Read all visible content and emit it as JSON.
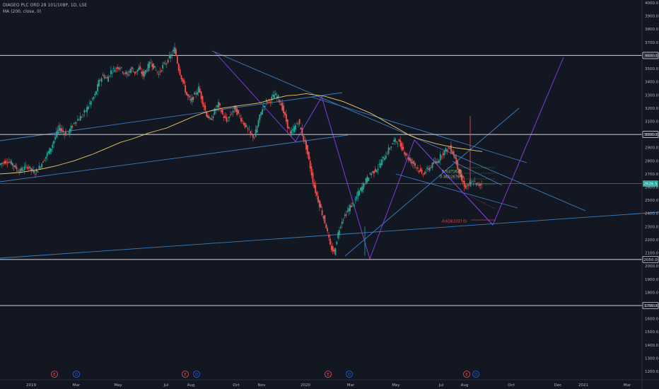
{
  "header": {
    "symbol_line": "DIAGEO PLC ORD 28 101/108P, 1D, LSE",
    "indicator_line": "MA (200, close, 0)"
  },
  "chart_data": {
    "type": "candlestick",
    "y_ticks": [
      1200,
      1300,
      1400,
      1500,
      1600,
      1700,
      1800,
      1900,
      2000,
      2100,
      2200,
      2300,
      2400,
      2500,
      2600,
      2700,
      2800,
      2900,
      3000,
      3100,
      3200,
      3300,
      3400,
      3500,
      3600,
      3700,
      3800,
      3900,
      4000
    ],
    "ylim": [
      1160,
      4015
    ],
    "x_labels": [
      "2019",
      "Mar",
      "May",
      "Jul",
      "Aug",
      "Oct",
      "Nov",
      "2020",
      "Mar",
      "May",
      "Jul",
      "Aug",
      "Oct",
      "Dec",
      "2021",
      "Mar"
    ],
    "horizontal_levels": [
      {
        "value": 3600,
        "label": "3600.0"
      },
      {
        "value": 3000,
        "label": "3000.0"
      },
      {
        "value": 2050,
        "label": "2050.0"
      },
      {
        "value": 1700,
        "label": "1700.0"
      }
    ],
    "last_price": {
      "value": 2626,
      "label": "2626.5"
    },
    "fib_labels": [
      {
        "text": "0.5(2716.0)",
        "value": 2716
      },
      {
        "text": "0.382(2676.0)",
        "value": 2676
      },
      {
        "text": "-0.618(2337.0)",
        "value": 2337
      }
    ],
    "event_markers": [
      {
        "type": "E",
        "after_label": 0
      },
      {
        "type": "D",
        "after_label": 0
      },
      {
        "type": "E",
        "after_label": 3
      },
      {
        "type": "D",
        "after_label": 3
      },
      {
        "type": "E",
        "after_label": 7
      },
      {
        "type": "D",
        "after_label": 7
      },
      {
        "type": "E",
        "after_label": 10
      },
      {
        "type": "D",
        "after_label": 10
      }
    ],
    "price_path": [
      2770,
      2790,
      2800,
      2780,
      2750,
      2720,
      2740,
      2760,
      2730,
      2710,
      2750,
      2800,
      2850,
      2900,
      2980,
      3050,
      3020,
      3000,
      3050,
      3100,
      3120,
      3150,
      3200,
      3250,
      3300,
      3400,
      3450,
      3420,
      3480,
      3500,
      3520,
      3480,
      3450,
      3500,
      3470,
      3500,
      3450,
      3500,
      3550,
      3500,
      3460,
      3520,
      3550,
      3600,
      3650,
      3500,
      3400,
      3300,
      3250,
      3300,
      3350,
      3250,
      3150,
      3100,
      3180,
      3230,
      3150,
      3100,
      3150,
      3200,
      3150,
      3100,
      3050,
      3000,
      2980,
      3100,
      3200,
      3250,
      3260,
      3300,
      3280,
      3200,
      3100,
      3000,
      3050,
      3100,
      3000,
      2900,
      2750,
      2600,
      2500,
      2400,
      2300,
      2150,
      2100,
      2250,
      2350,
      2400,
      2450,
      2480,
      2550,
      2600,
      2650,
      2700,
      2720,
      2750,
      2800,
      2850,
      2900,
      2950,
      2950,
      2900,
      2850,
      2800,
      2780,
      2740,
      2700,
      2720,
      2750,
      2780,
      2800,
      2850,
      2880,
      2900,
      2850,
      2750,
      2650,
      2600,
      2620,
      2640,
      2610,
      2626
    ],
    "ma200_path": [
      2700,
      2705,
      2710,
      2720,
      2730,
      2745,
      2760,
      2780,
      2800,
      2825,
      2850,
      2880,
      2910,
      2940,
      2960,
      2985,
      3010,
      3030,
      3050,
      3080,
      3110,
      3140,
      3165,
      3185,
      3200,
      3210,
      3220,
      3230,
      3240,
      3260,
      3280,
      3295,
      3300,
      3310,
      3300,
      3290,
      3270,
      3250,
      3220,
      3190,
      3160,
      3120,
      3080,
      3040,
      3000,
      2970,
      2950,
      2930,
      2915,
      2900,
      2890,
      2880,
      2870
    ]
  }
}
